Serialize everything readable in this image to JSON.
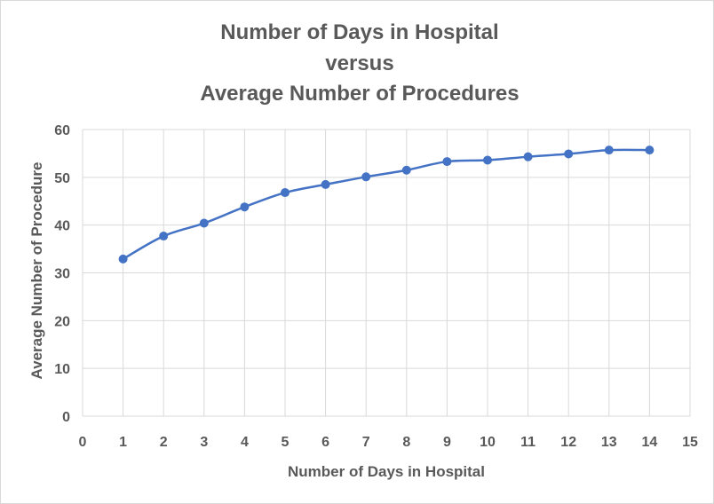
{
  "chart_data": {
    "type": "scatter",
    "title_lines": [
      "Number of Days in Hospital",
      "versus",
      "Average Number of Procedures"
    ],
    "xlabel": "Number of Days in Hospital",
    "ylabel": "Average Number of Procedure",
    "xlim": [
      0,
      15
    ],
    "ylim": [
      0,
      60
    ],
    "x_ticks": [
      0,
      1,
      2,
      3,
      4,
      5,
      6,
      7,
      8,
      9,
      10,
      11,
      12,
      13,
      14,
      15
    ],
    "y_ticks": [
      0,
      10,
      20,
      30,
      40,
      50,
      60
    ],
    "grid": true,
    "smooth_line": true,
    "series": [
      {
        "x": [
          1,
          2,
          3,
          4,
          5,
          6,
          7,
          8,
          9,
          10,
          11,
          12,
          13,
          14
        ],
        "y": [
          32.9,
          37.7,
          40.4,
          43.8,
          46.8,
          48.5,
          50.1,
          51.5,
          53.3,
          53.6,
          54.3,
          54.9,
          55.7,
          55.7
        ],
        "color": "#4472c4"
      }
    ],
    "colors": {
      "grid": "#d9d9d9",
      "text": "#595959",
      "series": "#4472c4"
    }
  }
}
